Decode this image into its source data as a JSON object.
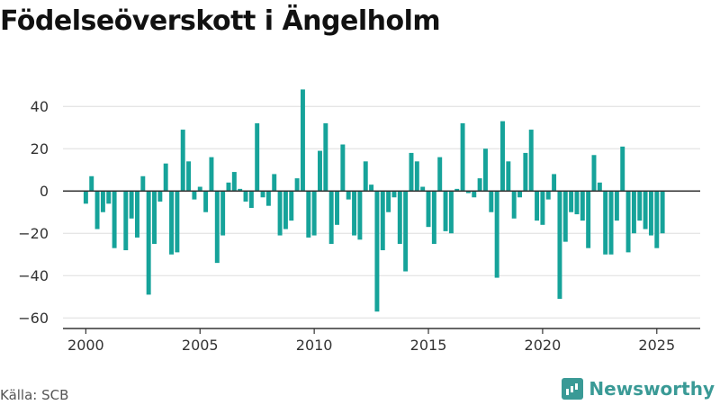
{
  "header": {
    "title": "Födelseöverskott i Ängelholm"
  },
  "footer": {
    "source": "Källa: SCB",
    "brand": "Newsworthy"
  },
  "colors": {
    "bar": "#16a39a",
    "grid": "#dddddd",
    "axis": "#333333"
  },
  "chart_data": {
    "type": "bar",
    "title": "Födelseöverskott i Ängelholm",
    "xlabel": "",
    "ylabel": "",
    "ylim": [
      -65,
      52
    ],
    "xlim": [
      1999.0,
      2026.9
    ],
    "yticks": [
      40,
      20,
      0,
      -20,
      -40,
      -60
    ],
    "xticks": [
      2000,
      2005,
      2010,
      2015,
      2020,
      2025
    ],
    "grid": true,
    "x_start": 2000.0,
    "x_step": 0.25,
    "values": [
      -6,
      7,
      -18,
      -10,
      -6,
      -27,
      0,
      -28,
      -13,
      -22,
      7,
      -49,
      -25,
      -5,
      13,
      -30,
      -29,
      29,
      14,
      -4,
      2,
      -10,
      16,
      -34,
      -21,
      4,
      9,
      1,
      -5,
      -8,
      32,
      -3,
      -7,
      8,
      -21,
      -18,
      -14,
      6,
      48,
      -22,
      -21,
      19,
      32,
      -25,
      -16,
      22,
      -4,
      -21,
      -23,
      14,
      3,
      -57,
      -28,
      -10,
      -3,
      -25,
      -38,
      18,
      14,
      2,
      -17,
      -25,
      16,
      -19,
      -20,
      1,
      32,
      -1,
      -3,
      6,
      20,
      -10,
      -41,
      33,
      14,
      -13,
      -3,
      18,
      29,
      -14,
      -16,
      -4,
      8,
      -51,
      -24,
      -10,
      -11,
      -14,
      -27,
      17,
      4,
      -30,
      -30,
      -14,
      21,
      -29,
      -20,
      -14,
      -18,
      -21,
      -27,
      -20
    ]
  }
}
